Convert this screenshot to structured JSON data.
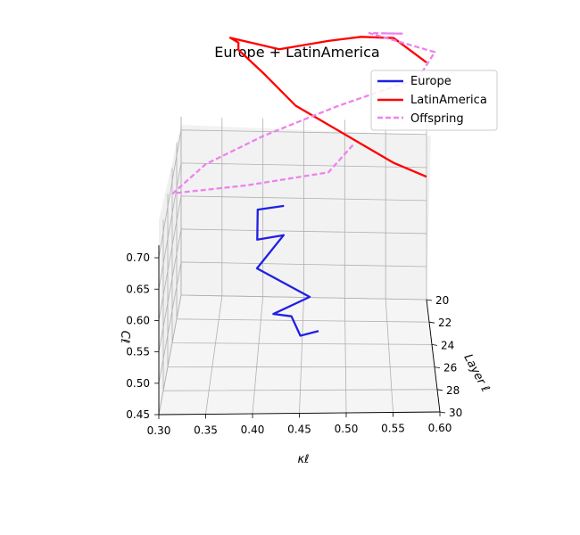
{
  "chart_data": {
    "type": "line",
    "title": "Europe + LatinAmerica",
    "xlabel": "κℓ",
    "ylabel": "Layer ℓ",
    "zlabel": "Cℓ",
    "xlim": [
      0.3,
      0.6
    ],
    "ylim": [
      20,
      30
    ],
    "zlim": [
      0.45,
      0.72
    ],
    "xticks": [
      "0.30",
      "0.35",
      "0.40",
      "0.45",
      "0.50",
      "0.55",
      "0.60"
    ],
    "yticks": [
      "20",
      "22",
      "24",
      "26",
      "28",
      "30"
    ],
    "zticks": [
      "0.45",
      "0.50",
      "0.55",
      "0.60",
      "0.65",
      "0.70"
    ],
    "grid": true,
    "legend_position": "top-right",
    "legend": [
      "Europe",
      "LatinAmerica",
      "Offspring"
    ],
    "colors": {
      "Europe": "#1f1fe6",
      "LatinAmerica": "#ff0000",
      "Offspring": "#ee82ee"
    },
    "series": [
      {
        "name": "Europe",
        "style": "solid",
        "x": [
          0.43,
          0.4,
          0.4,
          0.43,
          0.4,
          0.46,
          0.42,
          0.44,
          0.45,
          0.47
        ],
        "y": [
          25,
          25,
          25.5,
          25.6,
          25.7,
          27,
          27.3,
          27.5,
          27.8,
          28
        ],
        "z": [
          0.682,
          0.676,
          0.639,
          0.648,
          0.598,
          0.578,
          0.557,
          0.557,
          0.532,
          0.543
        ]
      },
      {
        "name": "LatinAmerica",
        "style": "solid",
        "x": [
          0.6,
          0.56,
          0.5,
          0.44,
          0.4,
          0.37,
          0.37,
          0.36,
          0.42,
          0.48,
          0.52,
          0.56,
          0.6
        ],
        "y": [
          20,
          20,
          20,
          20,
          20,
          20,
          20,
          20,
          20,
          20,
          20,
          20,
          20
        ],
        "z": [
          0.636,
          0.656,
          0.698,
          0.74,
          0.789,
          0.823,
          0.834,
          0.841,
          0.825,
          0.839,
          0.846,
          0.845,
          0.809
        ]
      },
      {
        "name": "Offspring",
        "style": "dashed",
        "x": [
          0.51,
          0.48,
          0.38,
          0.29,
          0.33,
          0.4,
          0.49,
          0.59,
          0.61,
          0.53,
          0.57,
          0.55
        ],
        "y": [
          20,
          20,
          20,
          20,
          20,
          20,
          20,
          20,
          20,
          20,
          20,
          20
        ],
        "z": [
          0.682,
          0.64,
          0.618,
          0.604,
          0.649,
          0.693,
          0.74,
          0.785,
          0.825,
          0.852,
          0.852,
          0.852
        ]
      }
    ]
  }
}
